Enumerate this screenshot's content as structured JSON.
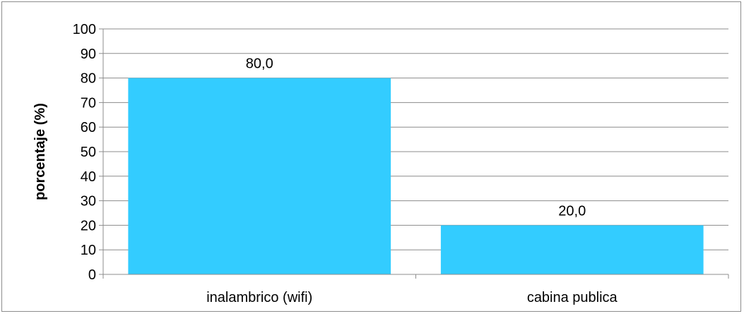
{
  "chart_data": {
    "type": "bar",
    "title": "",
    "xlabel": "",
    "ylabel": "porcentaje (%)",
    "ylim": [
      0,
      100
    ],
    "yticks": [
      "0",
      "10",
      "20",
      "30",
      "40",
      "50",
      "60",
      "70",
      "80",
      "90",
      "100"
    ],
    "categories": [
      "inalambrico (wifi)",
      "cabina publica"
    ],
    "values": [
      80,
      20
    ],
    "data_labels": [
      "80,0",
      "20,0"
    ],
    "bar_color": "#33CCFF",
    "grid": true,
    "legend": "none"
  }
}
